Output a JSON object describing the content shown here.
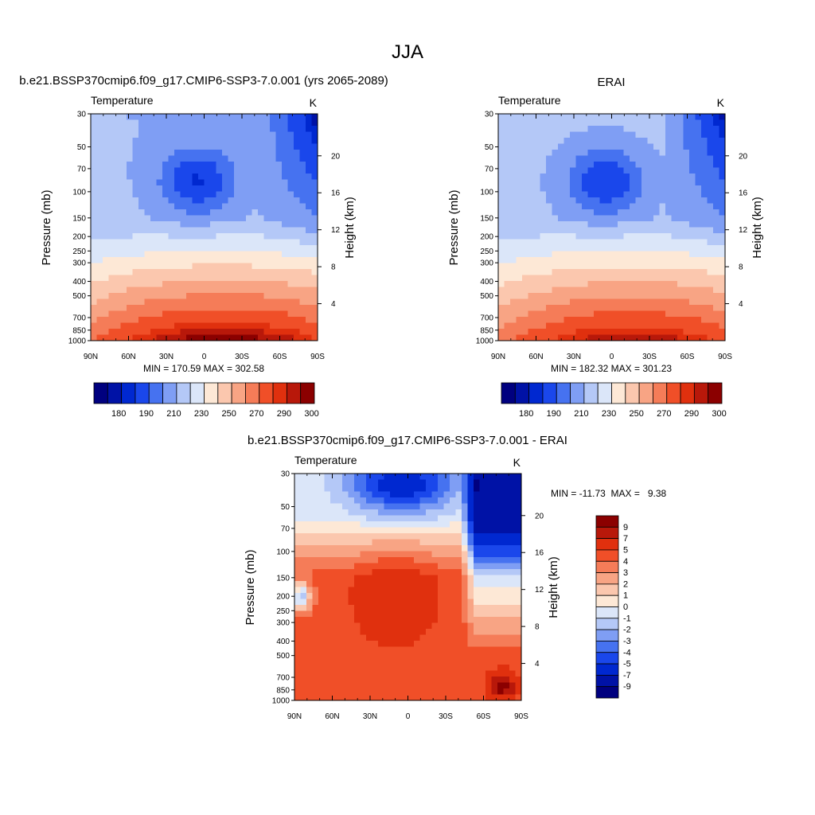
{
  "figure": {
    "title": "JJA",
    "pressure_ticks": [
      30,
      50,
      70,
      100,
      150,
      200,
      250,
      300,
      400,
      500,
      700,
      850,
      1000
    ],
    "height_ticks": [
      4,
      8,
      12,
      16,
      20
    ],
    "lat_ticks": [
      "90N",
      "60N",
      "30N",
      "0",
      "30S",
      "60S",
      "90S"
    ]
  },
  "chart_data": [
    {
      "id": "model",
      "type": "heatmap",
      "title": "b.e21.BSSP370cmip6.f09_g17.CMIP6-SSP3-7.0.001 (yrs 2065-2089)",
      "variable_label": "Temperature",
      "units_label": "K",
      "ylabel": "Pressure (mb)",
      "y2label": "Height (km)",
      "x_range": [
        90,
        -90
      ],
      "y_range": [
        30,
        1000
      ],
      "y_scale": "log",
      "stats_text": "MIN = 170.59  MAX = 302.58",
      "min": 170.59,
      "max": 302.58,
      "colorbar": {
        "orientation": "horizontal",
        "labels": [
          "180",
          "190",
          "210",
          "230",
          "250",
          "270",
          "290",
          "300"
        ],
        "colors": [
          "#00007f",
          "#0012a6",
          "#0028d0",
          "#1a47eb",
          "#4672f0",
          "#7f9ef4",
          "#b4c8f7",
          "#dbe6f9",
          "#fde8d6",
          "#fbc7ae",
          "#f8a484",
          "#f57c58",
          "#f04f28",
          "#e0300e",
          "#b8180a",
          "#8b0000"
        ]
      }
    },
    {
      "id": "obs",
      "type": "heatmap",
      "title": "ERAI",
      "variable_label": "Temperature",
      "units_label": "K",
      "ylabel": "Pressure (mb)",
      "y2label": "Height (km)",
      "x_range": [
        90,
        -90
      ],
      "y_range": [
        30,
        1000
      ],
      "y_scale": "log",
      "stats_text": "MIN = 182.32  MAX = 301.23",
      "min": 182.32,
      "max": 301.23,
      "colorbar": {
        "orientation": "horizontal",
        "labels": [
          "180",
          "190",
          "210",
          "230",
          "250",
          "270",
          "290",
          "300"
        ],
        "colors": [
          "#00007f",
          "#0012a6",
          "#0028d0",
          "#1a47eb",
          "#4672f0",
          "#7f9ef4",
          "#b4c8f7",
          "#dbe6f9",
          "#fde8d6",
          "#fbc7ae",
          "#f8a484",
          "#f57c58",
          "#f04f28",
          "#e0300e",
          "#b8180a",
          "#8b0000"
        ]
      }
    },
    {
      "id": "diff",
      "type": "heatmap",
      "title": "b.e21.BSSP370cmip6.f09_g17.CMIP6-SSP3-7.0.001 - ERAI",
      "variable_label": "Temperature",
      "units_label": "K",
      "ylabel": "Pressure (mb)",
      "y2label": "Height (km)",
      "x_range": [
        90,
        -90
      ],
      "y_range": [
        30,
        1000
      ],
      "y_scale": "log",
      "stats_text": "MIN = -11.73  MAX =   9.38",
      "min": -11.73,
      "max": 9.38,
      "colorbar": {
        "orientation": "vertical",
        "labels": [
          "9",
          "7",
          "5",
          "4",
          "3",
          "2",
          "1",
          "0",
          "-1",
          "-2",
          "-3",
          "-4",
          "-5",
          "-7",
          "-9"
        ],
        "colors": [
          "#8b0000",
          "#b8180a",
          "#e0300e",
          "#f04f28",
          "#f57c58",
          "#f8a484",
          "#fbc7ae",
          "#fde8d6",
          "#dbe6f9",
          "#b4c8f7",
          "#7f9ef4",
          "#4672f0",
          "#1a47eb",
          "#0028d0",
          "#0012a6",
          "#00007f"
        ]
      }
    }
  ]
}
